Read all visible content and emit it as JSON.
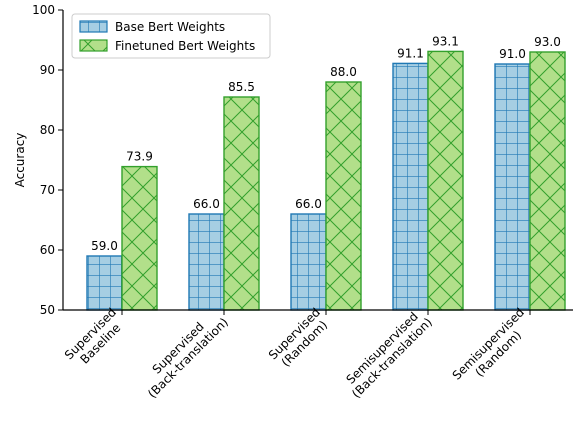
{
  "chart_data": {
    "type": "bar",
    "categories": [
      [
        "Supervised",
        "Baseline"
      ],
      [
        "Supervised",
        "(Back-translation)"
      ],
      [
        "Supervised",
        "(Random)"
      ],
      [
        "Semisupervised",
        "(Back-translation)"
      ],
      [
        "Semisupervised",
        "(Random)"
      ]
    ],
    "series": [
      {
        "name": "Base Bert Weights",
        "values": [
          59.0,
          66.0,
          66.0,
          91.1,
          91.0
        ],
        "value_labels": [
          "59.0",
          "66.0",
          "66.0",
          "91.1",
          "91.0"
        ],
        "fill": "#a6cee3",
        "stroke": "#1f78b4",
        "hatch": "grid"
      },
      {
        "name": "Finetuned Bert Weights",
        "values": [
          73.9,
          85.5,
          88.0,
          93.1,
          93.0
        ],
        "value_labels": [
          "73.9",
          "85.5",
          "88.0",
          "93.1",
          "93.0"
        ],
        "fill": "#b2df8a",
        "stroke": "#33a02c",
        "hatch": "cross"
      }
    ],
    "title": "",
    "xlabel": "",
    "ylabel": "Accuracy",
    "ylim": [
      50,
      100
    ],
    "yticks": [
      50,
      60,
      70,
      80,
      90,
      100
    ],
    "grid": false,
    "legend_position": "top-left"
  }
}
